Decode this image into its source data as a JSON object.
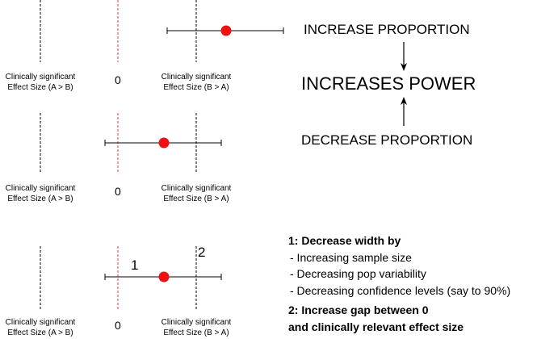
{
  "panels": [
    {
      "left_label_line1": "Clinically significant",
      "left_label_line2": "Effect Size (A > B)",
      "zero_label": "0",
      "right_label_line1": "Clinically significant",
      "right_label_line2": "Effect Size (B > A)"
    },
    {
      "left_label_line1": "Clinically significant",
      "left_label_line2": "Effect Size (A > B)",
      "zero_label": "0",
      "right_label_line1": "Clinically significant",
      "right_label_line2": "Effect Size (B > A)"
    },
    {
      "left_label_line1": "Clinically significant",
      "left_label_line2": "Effect Size (A > B)",
      "zero_label": "0",
      "right_label_line1": "Clinically significant",
      "right_label_line2": "Effect Size (B > A)",
      "marker_1": "1",
      "marker_2": "2"
    }
  ],
  "power": {
    "top": "INCREASE PROPORTION",
    "center": "INCREASES POWER",
    "bottom": "DECREASE PROPORTION"
  },
  "notes": {
    "heading1": "1: Decrease width by",
    "items": [
      "- Increasing sample size",
      "- Decreasing pop variability",
      "- Decreasing confidence levels (say to 90%)"
    ],
    "heading2_line1": "2: Increase gap between 0",
    "heading2_line2": "and clinically relevant effect size"
  },
  "colors": {
    "zero_line": "#e53935",
    "point": "#ee1111",
    "dashed": "#000000"
  }
}
